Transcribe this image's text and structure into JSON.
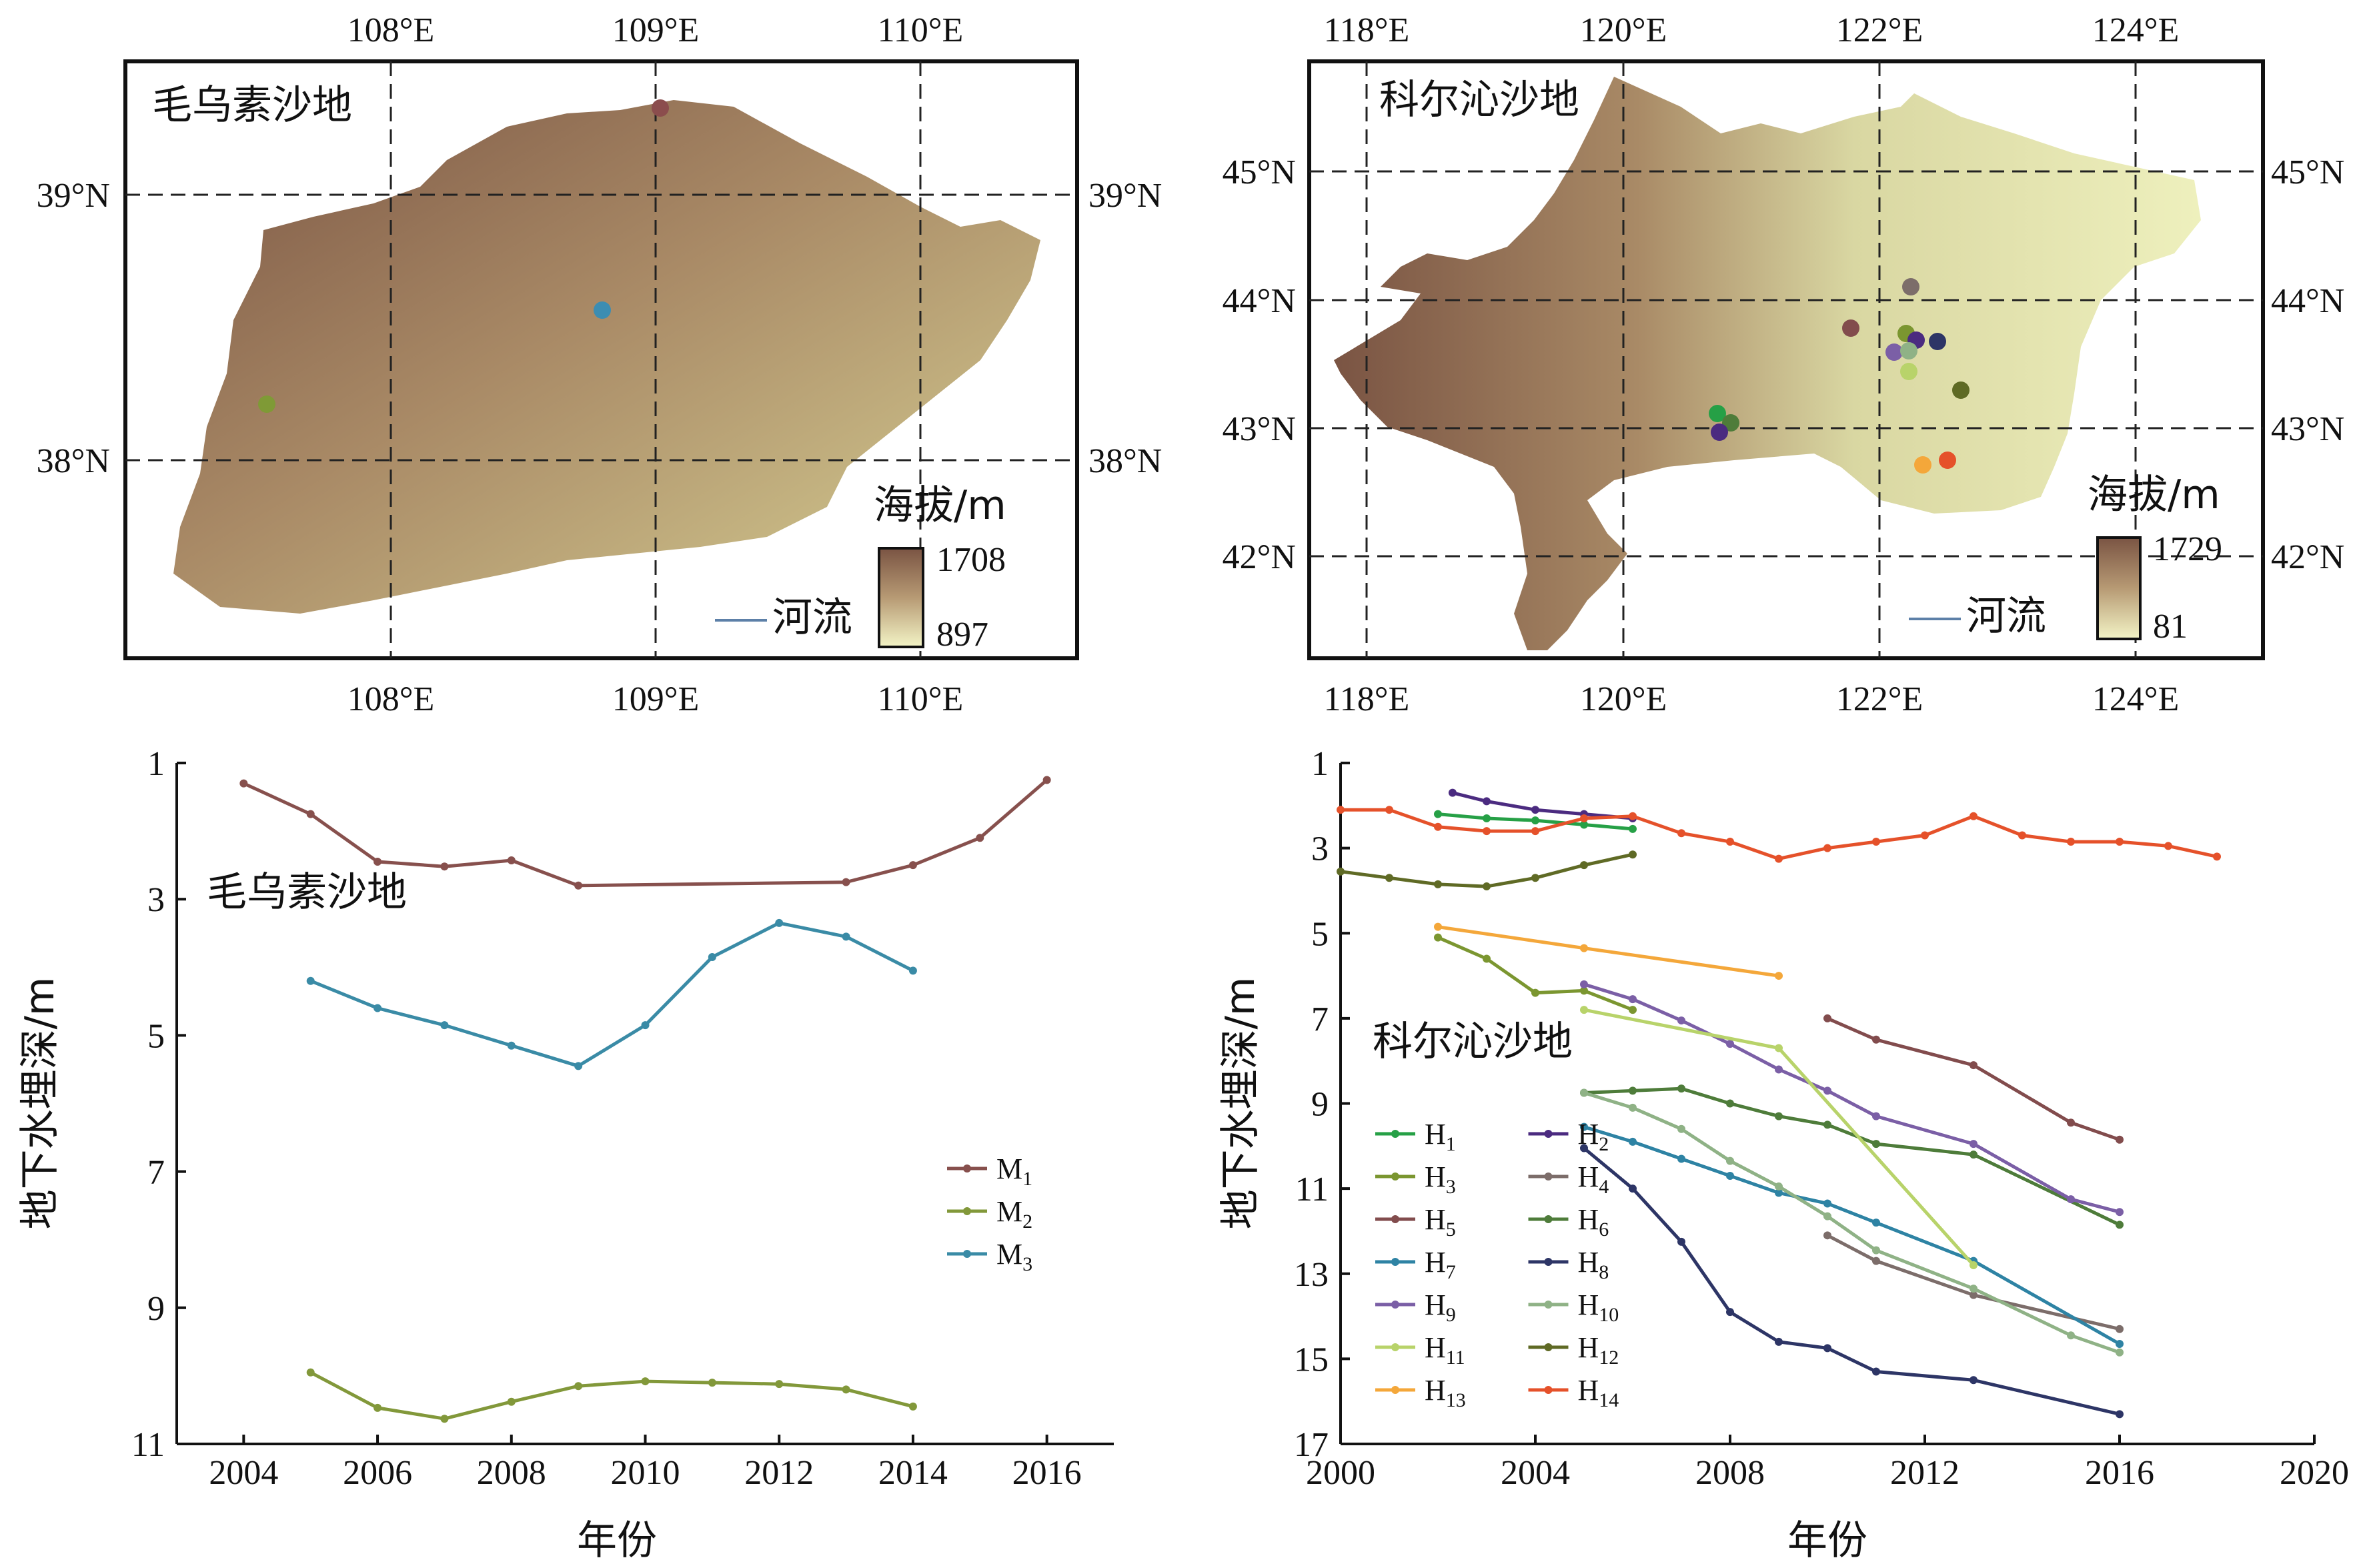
{
  "maps": [
    {
      "title": "毛乌素沙地",
      "x_ticks": [
        "108°E",
        "109°E",
        "110°E"
      ],
      "y_ticks": [
        "39°N",
        "38°N"
      ],
      "elevation_label": "海拔/m",
      "elevation_max": "1708",
      "elevation_min": "897",
      "river_label": "河流",
      "colors": {
        "high": "#7a5443",
        "mid": "#a98a66",
        "low": "#f1f1c4"
      },
      "sites": [
        {
          "label": "M1",
          "color": "#8b4d4d"
        },
        {
          "label": "M2",
          "color": "#7f9a36"
        },
        {
          "label": "M3",
          "color": "#3c8db2"
        }
      ]
    },
    {
      "title": "科尔沁沙地",
      "x_ticks": [
        "118°E",
        "120°E",
        "122°E",
        "124°E"
      ],
      "y_ticks": [
        "45°N",
        "44°N",
        "43°N",
        "42°N"
      ],
      "elevation_label": "海拔/m",
      "elevation_max": "1729",
      "elevation_min": "81",
      "river_label": "河流",
      "colors": {
        "high": "#7a5443",
        "mid": "#b9ad7c",
        "low": "#eef0bd"
      }
    }
  ],
  "chart_data": [
    {
      "type": "line",
      "title": "毛乌素沙地",
      "xlabel": "年份",
      "ylabel": "地下水埋深/m",
      "xlim": [
        2003,
        2017
      ],
      "ylim": [
        1,
        11
      ],
      "y_inverted": true,
      "x_ticks": [
        2004,
        2006,
        2008,
        2010,
        2012,
        2014,
        2016
      ],
      "y_ticks": [
        1,
        3,
        5,
        7,
        9,
        11
      ],
      "series": [
        {
          "name": "M",
          "sub": "1",
          "color": "#87504d",
          "x": [
            2004,
            2005,
            2006,
            2007,
            2008,
            2009,
            2013,
            2014,
            2015,
            2016
          ],
          "y": [
            1.3,
            1.75,
            2.45,
            2.52,
            2.43,
            2.8,
            2.75,
            2.5,
            2.1,
            1.25
          ]
        },
        {
          "name": "M",
          "sub": "2",
          "color": "#82983a",
          "x": [
            2005,
            2006,
            2007,
            2008,
            2009,
            2010,
            2011,
            2012,
            2013,
            2014
          ],
          "y": [
            9.95,
            10.47,
            10.63,
            10.38,
            10.15,
            10.08,
            10.1,
            10.12,
            10.2,
            10.45
          ]
        },
        {
          "name": "M",
          "sub": "3",
          "color": "#3a8ba6",
          "x": [
            2005,
            2006,
            2007,
            2008,
            2009,
            2010,
            2011,
            2012,
            2013,
            2014
          ],
          "y": [
            4.2,
            4.6,
            4.85,
            5.15,
            5.45,
            4.85,
            3.85,
            3.35,
            3.55,
            4.05
          ]
        }
      ],
      "legend_position": "right"
    },
    {
      "type": "line",
      "title": "科尔沁沙地",
      "xlabel": "年份",
      "ylabel": "地下水埋深/m",
      "xlim": [
        2000,
        2020
      ],
      "ylim": [
        1,
        17
      ],
      "y_inverted": true,
      "x_ticks": [
        2000,
        2004,
        2008,
        2012,
        2016,
        2020
      ],
      "y_ticks": [
        1,
        3,
        5,
        7,
        9,
        11,
        13,
        15,
        17
      ],
      "series": [
        {
          "name": "H",
          "sub": "1",
          "color": "#26a046",
          "x": [
            2002,
            2003,
            2004,
            2005,
            2006
          ],
          "y": [
            2.2,
            2.3,
            2.35,
            2.45,
            2.55
          ]
        },
        {
          "name": "H",
          "sub": "2",
          "color": "#4b2b80",
          "x": [
            2002.3,
            2003,
            2004,
            2005,
            2006
          ],
          "y": [
            1.7,
            1.9,
            2.1,
            2.2,
            2.3
          ]
        },
        {
          "name": "H",
          "sub": "3",
          "color": "#7b9630",
          "x": [
            2002,
            2003,
            2004,
            2005,
            2006
          ],
          "y": [
            5.1,
            5.6,
            6.4,
            6.35,
            6.8
          ]
        },
        {
          "name": "H",
          "sub": "4",
          "color": "#7c6d6a",
          "x": [
            2010,
            2011,
            2013,
            2016
          ],
          "y": [
            12.1,
            12.7,
            13.5,
            14.3
          ]
        },
        {
          "name": "H",
          "sub": "5",
          "color": "#824c4d",
          "x": [
            2010,
            2011,
            2013,
            2015,
            2016
          ],
          "y": [
            7.0,
            7.5,
            8.1,
            9.45,
            9.85
          ]
        },
        {
          "name": "H",
          "sub": "6",
          "color": "#4e7c3a",
          "x": [
            2005,
            2006,
            2007,
            2008,
            2009,
            2010,
            2011,
            2013,
            2016
          ],
          "y": [
            8.75,
            8.7,
            8.65,
            9.0,
            9.3,
            9.5,
            9.95,
            10.2,
            11.85
          ]
        },
        {
          "name": "H",
          "sub": "7",
          "color": "#2e83a4",
          "x": [
            2005,
            2006,
            2007,
            2008,
            2009,
            2010,
            2011,
            2013,
            2016
          ],
          "y": [
            9.55,
            9.9,
            10.3,
            10.7,
            11.1,
            11.35,
            11.8,
            12.7,
            14.65
          ]
        },
        {
          "name": "H",
          "sub": "8",
          "color": "#2d3566",
          "x": [
            2005,
            2006,
            2007,
            2008,
            2009,
            2010,
            2011,
            2013,
            2016
          ],
          "y": [
            10.05,
            11.0,
            12.25,
            13.9,
            14.6,
            14.75,
            15.3,
            15.5,
            16.3
          ]
        },
        {
          "name": "H",
          "sub": "9",
          "color": "#7b5fa6",
          "x": [
            2005,
            2006,
            2007,
            2008,
            2009,
            2010,
            2011,
            2013,
            2015,
            2016
          ],
          "y": [
            6.2,
            6.55,
            7.05,
            7.6,
            8.2,
            8.7,
            9.3,
            9.95,
            11.25,
            11.55
          ]
        },
        {
          "name": "H",
          "sub": "10",
          "color": "#8fb286",
          "x": [
            2005,
            2006,
            2007,
            2008,
            2009,
            2010,
            2011,
            2013,
            2015,
            2016
          ],
          "y": [
            8.75,
            9.1,
            9.6,
            10.35,
            10.95,
            11.65,
            12.45,
            13.35,
            14.45,
            14.85
          ]
        },
        {
          "name": "H",
          "sub": "11",
          "color": "#b8d36a",
          "x": [
            2005,
            2009,
            2013
          ],
          "y": [
            6.8,
            7.7,
            12.8
          ]
        },
        {
          "name": "H",
          "sub": "12",
          "color": "#5f6a25",
          "x": [
            2000,
            2001,
            2002,
            2003,
            2004,
            2005,
            2006
          ],
          "y": [
            3.55,
            3.7,
            3.85,
            3.9,
            3.7,
            3.4,
            3.15
          ]
        },
        {
          "name": "H",
          "sub": "13",
          "color": "#f4a73a",
          "x": [
            2002,
            2005,
            2009
          ],
          "y": [
            4.85,
            5.35,
            6.0
          ]
        },
        {
          "name": "H",
          "sub": "14",
          "color": "#e5512a",
          "x": [
            2000,
            2001,
            2002,
            2003,
            2004,
            2005,
            2006,
            2007,
            2008,
            2009,
            2010,
            2011,
            2012,
            2013,
            2014,
            2015,
            2016,
            2017,
            2018
          ],
          "y": [
            2.1,
            2.1,
            2.5,
            2.6,
            2.6,
            2.3,
            2.25,
            2.65,
            2.85,
            3.25,
            3.0,
            2.85,
            2.7,
            2.25,
            2.7,
            2.85,
            2.85,
            2.95,
            3.2
          ]
        }
      ],
      "legend_position": "left"
    }
  ]
}
